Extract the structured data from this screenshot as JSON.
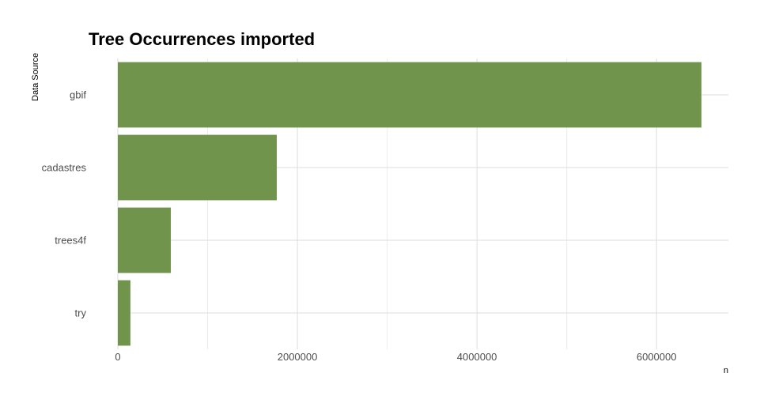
{
  "chart_data": {
    "type": "bar",
    "orientation": "horizontal",
    "title": "Tree Occurrences imported",
    "xlabel": "n",
    "ylabel": "Data Source",
    "categories": [
      "gbif",
      "cadastres",
      "trees4f",
      "try"
    ],
    "values": [
      6500000,
      1770000,
      590000,
      140000
    ],
    "xlim": [
      0,
      6800000
    ],
    "x_ticks": [
      0,
      2000000,
      4000000,
      6000000
    ],
    "x_tick_labels": [
      "0",
      "2000000",
      "4000000",
      "6000000"
    ],
    "x_minor_ticks": [
      1000000,
      3000000,
      5000000
    ],
    "grid": true,
    "legend": "none",
    "bar_color": "#71944c"
  }
}
